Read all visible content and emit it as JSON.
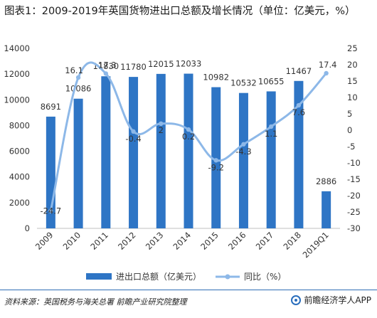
{
  "title": "图表1：2009-2019年英国货物进出口总额及增长情况（单位：亿美元，%）",
  "source_text": "资料来源：英国税务与海关总署 前瞻产业研究院整理",
  "brand_text": "前瞻经济学人APP",
  "colors": {
    "bar": "#2e75c5",
    "line": "#8db8e8",
    "axis": "#bfbfbf",
    "text": "#333333"
  },
  "chart_data": {
    "type": "bar+line",
    "categories": [
      "2009",
      "2010",
      "2011",
      "2012",
      "2013",
      "2014",
      "2015",
      "2016",
      "2017",
      "2018",
      "2019Q1"
    ],
    "series": [
      {
        "name": "进出口总额（亿美元）",
        "type": "bar",
        "axis": "left",
        "values": [
          8691,
          10086,
          11830,
          11780,
          12015,
          12033,
          10982,
          10532,
          10655,
          11467,
          2886
        ],
        "labels": [
          "8691",
          "10086",
          "11830",
          "11780",
          "12015",
          "12033",
          "10982",
          "10532",
          "10655",
          "11467",
          "2886"
        ]
      },
      {
        "name": "同比（%）",
        "type": "line",
        "axis": "right",
        "values": [
          -24.7,
          16.1,
          17.3,
          -0.4,
          2,
          0.2,
          -9.2,
          -4.3,
          1.1,
          7.6,
          17.4
        ],
        "labels": [
          "-24.7",
          "16.1",
          "17.3",
          "-0.4",
          "2",
          "0.2",
          "-9.2",
          "-4.3",
          "1.1",
          "7.6",
          "17.4"
        ]
      }
    ],
    "y_left": {
      "min": 0,
      "max": 14000,
      "ticks": [
        "0",
        "2000",
        "4000",
        "6000",
        "8000",
        "10000",
        "12000",
        "14000"
      ]
    },
    "y_right": {
      "min": -30,
      "max": 25,
      "ticks": [
        "25",
        "20",
        "15",
        "10",
        "5",
        "0",
        "-5",
        "-10",
        "-15",
        "-20",
        "-25",
        "-30"
      ]
    },
    "legend_position": "bottom",
    "grid": false
  }
}
